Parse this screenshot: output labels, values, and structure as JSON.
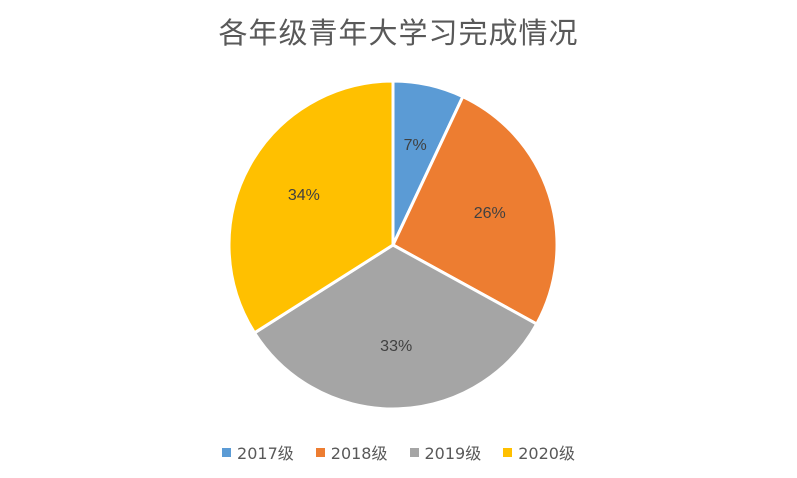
{
  "chart_data": {
    "type": "pie",
    "title": "各年级青年大学习完成情况",
    "categories": [
      "2017级",
      "2018级",
      "2019级",
      "2020级"
    ],
    "values": [
      7,
      26,
      33,
      34
    ],
    "labels": [
      "7%",
      "26%",
      "33%",
      "34%"
    ],
    "colors": [
      "#5B9BD5",
      "#ED7D31",
      "#A5A5A5",
      "#FFC000"
    ],
    "start_angle_deg": 0,
    "direction": "clockwise",
    "legend": "bottom"
  }
}
